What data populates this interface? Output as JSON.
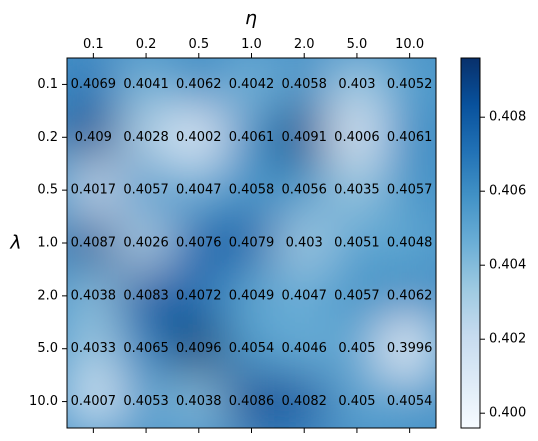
{
  "chart_data": {
    "type": "heatmap",
    "xlabel": "η",
    "ylabel": "λ",
    "x_categories": [
      "0.1",
      "0.2",
      "0.5",
      "1.0",
      "2.0",
      "5.0",
      "10.0"
    ],
    "y_categories": [
      "0.1",
      "0.2",
      "0.5",
      "1.0",
      "2.0",
      "5.0",
      "10.0"
    ],
    "x_axis_position": "top",
    "values": [
      [
        0.4069,
        0.4041,
        0.4062,
        0.4042,
        0.4058,
        0.403,
        0.4052
      ],
      [
        0.409,
        0.4028,
        0.4002,
        0.4061,
        0.4091,
        0.4006,
        0.4061
      ],
      [
        0.4017,
        0.4057,
        0.4047,
        0.4058,
        0.4056,
        0.4035,
        0.4057
      ],
      [
        0.4087,
        0.4026,
        0.4076,
        0.4079,
        0.403,
        0.4051,
        0.4048
      ],
      [
        0.4038,
        0.4083,
        0.4072,
        0.4049,
        0.4047,
        0.4057,
        0.4062
      ],
      [
        0.4033,
        0.4065,
        0.4096,
        0.4054,
        0.4046,
        0.405,
        0.3996
      ],
      [
        0.4007,
        0.4053,
        0.4038,
        0.4086,
        0.4082,
        0.405,
        0.4054
      ]
    ],
    "labels": [
      [
        "0.4069",
        "0.4041",
        "0.4062",
        "0.4042",
        "0.4058",
        "0.403",
        "0.4052"
      ],
      [
        "0.409",
        "0.4028",
        "0.4002",
        "0.4061",
        "0.4091",
        "0.4006",
        "0.4061"
      ],
      [
        "0.4017",
        "0.4057",
        "0.4047",
        "0.4058",
        "0.4056",
        "0.4035",
        "0.4057"
      ],
      [
        "0.4087",
        "0.4026",
        "0.4076",
        "0.4079",
        "0.403",
        "0.4051",
        "0.4048"
      ],
      [
        "0.4038",
        "0.4083",
        "0.4072",
        "0.4049",
        "0.4047",
        "0.4057",
        "0.4062"
      ],
      [
        "0.4033",
        "0.4065",
        "0.4096",
        "0.4054",
        "0.4046",
        "0.405",
        "0.3996"
      ],
      [
        "0.4007",
        "0.4053",
        "0.4038",
        "0.4086",
        "0.4082",
        "0.405",
        "0.4054"
      ]
    ],
    "colormap": "Blues",
    "colormap_stops": [
      "#f7fbff",
      "#deebf7",
      "#c6dbef",
      "#9ecae1",
      "#6baed6",
      "#4292c6",
      "#2171b5",
      "#08519c",
      "#08306b"
    ],
    "color_range": [
      0.3996,
      0.4096
    ],
    "colorbar": {
      "ticks": [
        "0.400",
        "0.402",
        "0.404",
        "0.406",
        "0.408"
      ],
      "tick_values": [
        0.4,
        0.402,
        0.404,
        0.406,
        0.408
      ]
    },
    "interpolation": "smooth",
    "grid": false
  }
}
